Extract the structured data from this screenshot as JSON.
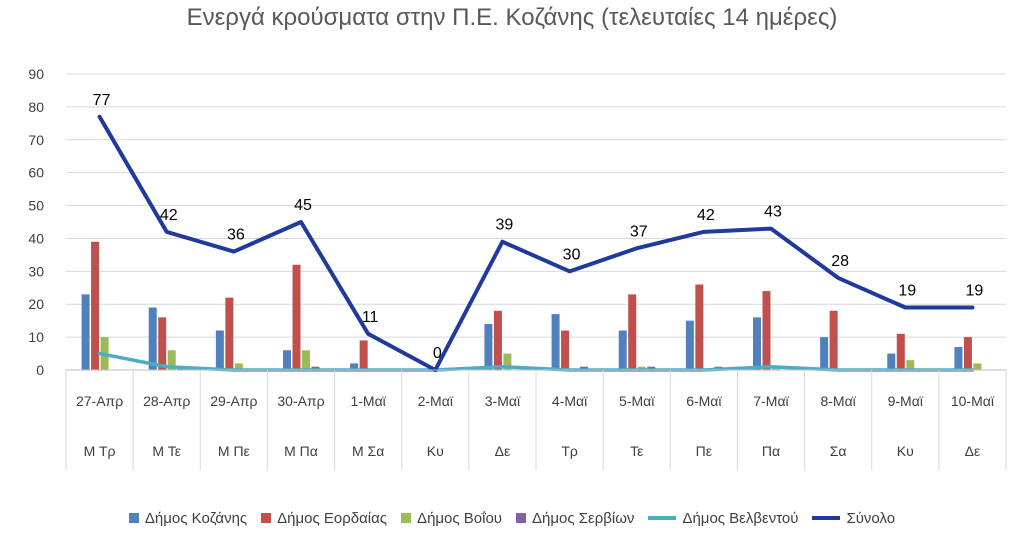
{
  "chart_data": {
    "type": "bar",
    "title": "Ενεργά κρούσματα στην Π.Ε. Κοζάνης (τελευταίες 14 ημέρες)",
    "categories": [
      "27-Απρ",
      "28-Απρ",
      "29-Απρ",
      "30-Απρ",
      "1-Μαϊ",
      "2-Μαϊ",
      "3-Μαϊ",
      "4-Μαϊ",
      "5-Μαϊ",
      "6-Μαϊ",
      "7-Μαϊ",
      "8-Μαϊ",
      "9-Μαϊ",
      "10-Μαϊ"
    ],
    "day_labels": [
      "Μ Τρ",
      "Μ Τε",
      "Μ Πε",
      "Μ Πα",
      "Μ Σα",
      "Κυ",
      "Δε",
      "Τρ",
      "Τε",
      "Πε",
      "Πα",
      "Σα",
      "Κυ",
      "Δε"
    ],
    "yticks": [
      "0",
      "10",
      "20",
      "30",
      "40",
      "50",
      "60",
      "70",
      "80",
      "90"
    ],
    "ylim": [
      0,
      90
    ],
    "grid": true,
    "legend_position": "bottom",
    "bar_series": [
      {
        "name": "Δήμος Κοζάνης",
        "color": "#4f81bd",
        "values": [
          23,
          19,
          12,
          6,
          2,
          0,
          14,
          17,
          12,
          15,
          16,
          10,
          5,
          7
        ]
      },
      {
        "name": "Δήμος Εορδαίας",
        "color": "#c0504d",
        "values": [
          39,
          16,
          22,
          32,
          9,
          0,
          18,
          12,
          23,
          26,
          24,
          18,
          11,
          10
        ]
      },
      {
        "name": "Δήμος Βοΐου",
        "color": "#9bbb59",
        "values": [
          10,
          6,
          2,
          6,
          0,
          0,
          5,
          0,
          1,
          0,
          1,
          0,
          3,
          2
        ]
      },
      {
        "name": "Δήμος Σερβίων",
        "color": "#8064a2",
        "values": [
          0,
          1,
          0,
          1,
          0,
          0,
          0,
          1,
          1,
          1,
          0,
          0,
          0,
          0
        ]
      }
    ],
    "line_series": [
      {
        "name": "Δήμος Βελβεντού",
        "color": "#4bacc6",
        "values": [
          5,
          1,
          0,
          0,
          0,
          0,
          1,
          0,
          0,
          0,
          1,
          0,
          0,
          0
        ]
      },
      {
        "name": "Σύνολο",
        "color": "#1f3a9c",
        "values": [
          77,
          42,
          36,
          45,
          11,
          0,
          39,
          30,
          37,
          42,
          43,
          28,
          19,
          19
        ]
      }
    ],
    "total_labels": [
      "77",
      "42",
      "36",
      "45",
      "11",
      "0",
      "39",
      "30",
      "37",
      "42",
      "43",
      "28",
      "19",
      "19"
    ]
  }
}
